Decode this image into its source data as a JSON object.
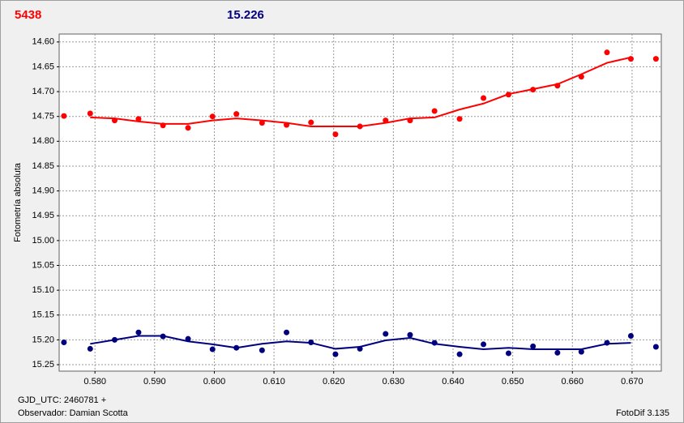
{
  "chart_data": {
    "type": "scatter-fit",
    "ylabel": "Fotometría absoluta",
    "xlabel": "GJD_UTC: 2460781 +",
    "observer": "Observador: Damian Scotta",
    "software": "FotoDif 3.135",
    "x": [
      0.5748,
      0.5792,
      0.5833,
      0.5873,
      0.5914,
      0.5956,
      0.5997,
      0.6037,
      0.608,
      0.6121,
      0.6162,
      0.6203,
      0.6244,
      0.6287,
      0.6328,
      0.6369,
      0.6411,
      0.6451,
      0.6493,
      0.6534,
      0.6575,
      0.6615,
      0.6658,
      0.6698,
      0.674
    ],
    "series": [
      {
        "name": "5438",
        "color": "#ff0000",
        "values": [
          14.749,
          14.744,
          14.758,
          14.755,
          14.768,
          14.773,
          14.75,
          14.745,
          14.763,
          14.767,
          14.762,
          14.786,
          14.77,
          14.758,
          14.758,
          14.739,
          14.755,
          14.713,
          14.706,
          14.696,
          14.688,
          14.67,
          14.621,
          14.634,
          14.634
        ],
        "fit": [
          null,
          14.752,
          14.754,
          14.76,
          14.765,
          14.765,
          14.758,
          14.754,
          14.758,
          14.763,
          14.77,
          14.77,
          14.77,
          14.763,
          14.754,
          14.752,
          14.736,
          14.724,
          14.705,
          14.695,
          14.685,
          14.665,
          14.642,
          14.631,
          null
        ]
      },
      {
        "name": "15.226",
        "color": "#00007f",
        "values": [
          15.205,
          15.218,
          15.2,
          15.185,
          15.193,
          15.198,
          15.219,
          15.216,
          15.221,
          15.185,
          15.205,
          15.229,
          15.218,
          15.188,
          15.19,
          15.206,
          15.229,
          15.209,
          15.227,
          15.213,
          15.226,
          15.224,
          15.206,
          15.192,
          15.214
        ],
        "fit": [
          null,
          15.208,
          15.2,
          15.192,
          15.192,
          15.203,
          15.209,
          15.216,
          15.208,
          15.203,
          15.206,
          15.218,
          15.214,
          15.201,
          15.196,
          15.208,
          15.214,
          15.219,
          15.216,
          15.219,
          15.219,
          15.219,
          15.208,
          15.206,
          null
        ]
      }
    ],
    "xlim": [
      0.574,
      0.6749
    ],
    "ylim": [
      15.263,
      14.584
    ],
    "xticks": [
      {
        "value": 0.58,
        "label": "0.580"
      },
      {
        "value": 0.59,
        "label": "0.590"
      },
      {
        "value": 0.6,
        "label": "0.600"
      },
      {
        "value": 0.61,
        "label": "0.610"
      },
      {
        "value": 0.62,
        "label": "0.620"
      },
      {
        "value": 0.63,
        "label": "0.630"
      },
      {
        "value": 0.64,
        "label": "0.640"
      },
      {
        "value": 0.65,
        "label": "0.650"
      },
      {
        "value": 0.66,
        "label": "0.660"
      },
      {
        "value": 0.67,
        "label": "0.670"
      }
    ],
    "yticks": [
      {
        "value": 14.6,
        "label": "14.60"
      },
      {
        "value": 14.65,
        "label": "14.65"
      },
      {
        "value": 14.7,
        "label": "14.70"
      },
      {
        "value": 14.75,
        "label": "14.75"
      },
      {
        "value": 14.8,
        "label": "14.80"
      },
      {
        "value": 14.85,
        "label": "14.85"
      },
      {
        "value": 14.9,
        "label": "14.90"
      },
      {
        "value": 14.95,
        "label": "14.95"
      },
      {
        "value": 15,
        "label": "15.00"
      },
      {
        "value": 15.05,
        "label": "15.05"
      },
      {
        "value": 15.1,
        "label": "15.10"
      },
      {
        "value": 15.15,
        "label": "15.15"
      },
      {
        "value": 15.2,
        "label": "15.20"
      },
      {
        "value": 15.25,
        "label": "15.25"
      }
    ],
    "grid": true
  }
}
